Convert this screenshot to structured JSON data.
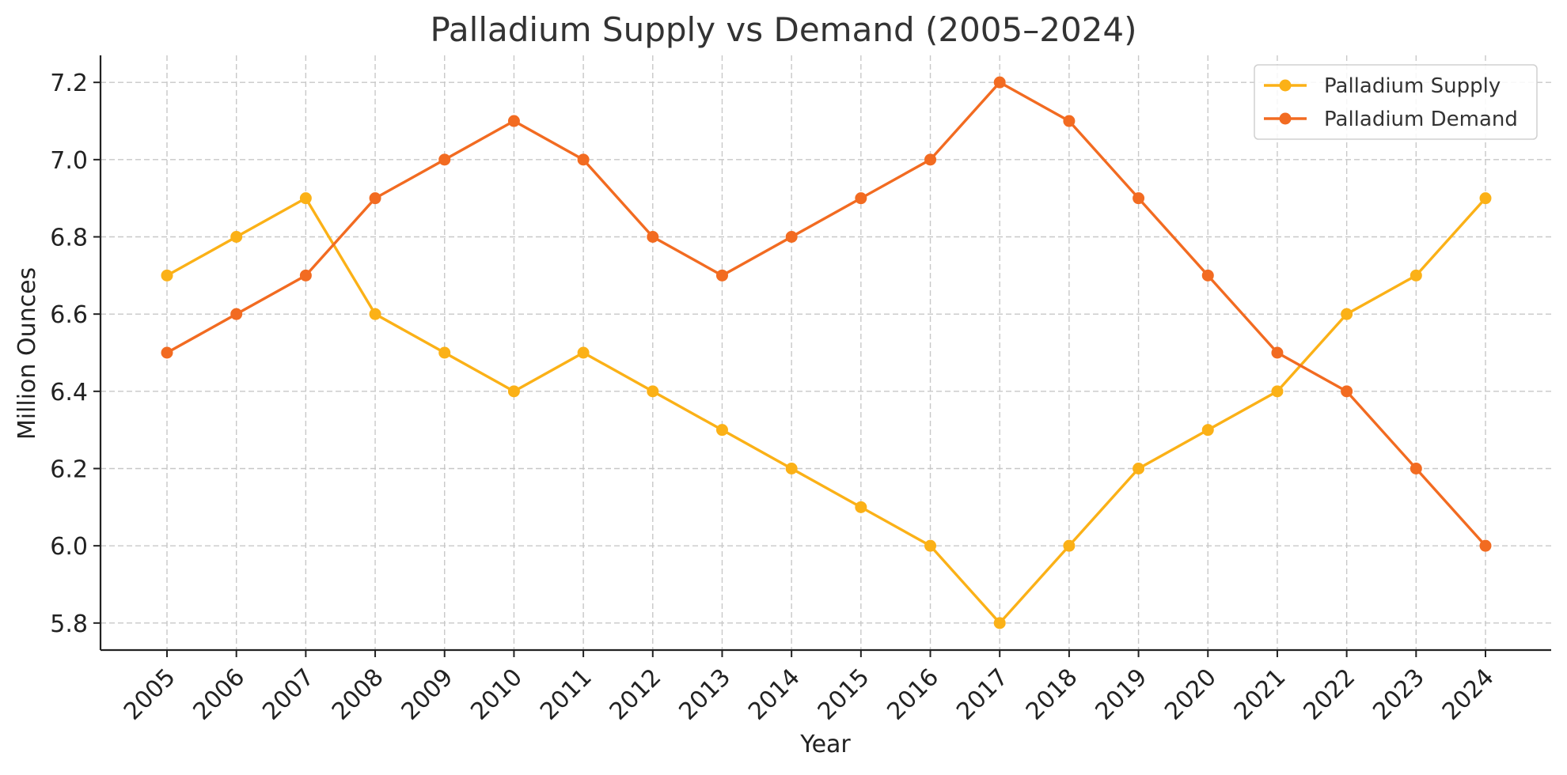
{
  "chart_data": {
    "type": "line",
    "title": "Palladium Supply vs Demand (2005–2024)",
    "xlabel": "Year",
    "ylabel": "Million Ounces",
    "x": [
      "2005",
      "2006",
      "2007",
      "2008",
      "2009",
      "2010",
      "2011",
      "2012",
      "2013",
      "2014",
      "2015",
      "2016",
      "2017",
      "2018",
      "2019",
      "2020",
      "2021",
      "2022",
      "2023",
      "2024"
    ],
    "ylim": [
      5.73,
      7.27
    ],
    "yticks": [
      5.8,
      6.0,
      6.2,
      6.4,
      6.6,
      6.8,
      7.0,
      7.2
    ],
    "ytick_labels": [
      "5.8",
      "6.0",
      "6.2",
      "6.4",
      "6.6",
      "6.8",
      "7.0",
      "7.2"
    ],
    "grid": true,
    "legend_position": "top-right",
    "series": [
      {
        "name": "Palladium Supply",
        "color": "#FBB117",
        "values": [
          6.7,
          6.8,
          6.9,
          6.6,
          6.5,
          6.4,
          6.5,
          6.4,
          6.3,
          6.2,
          6.1,
          6.0,
          5.8,
          6.0,
          6.2,
          6.3,
          6.4,
          6.6,
          6.7,
          6.9
        ]
      },
      {
        "name": "Palladium Demand",
        "color": "#F26B21",
        "values": [
          6.5,
          6.6,
          6.7,
          6.9,
          7.0,
          7.1,
          7.0,
          6.8,
          6.7,
          6.8,
          6.9,
          7.0,
          7.2,
          7.1,
          6.9,
          6.7,
          6.5,
          6.4,
          6.2,
          6.0
        ]
      }
    ]
  }
}
